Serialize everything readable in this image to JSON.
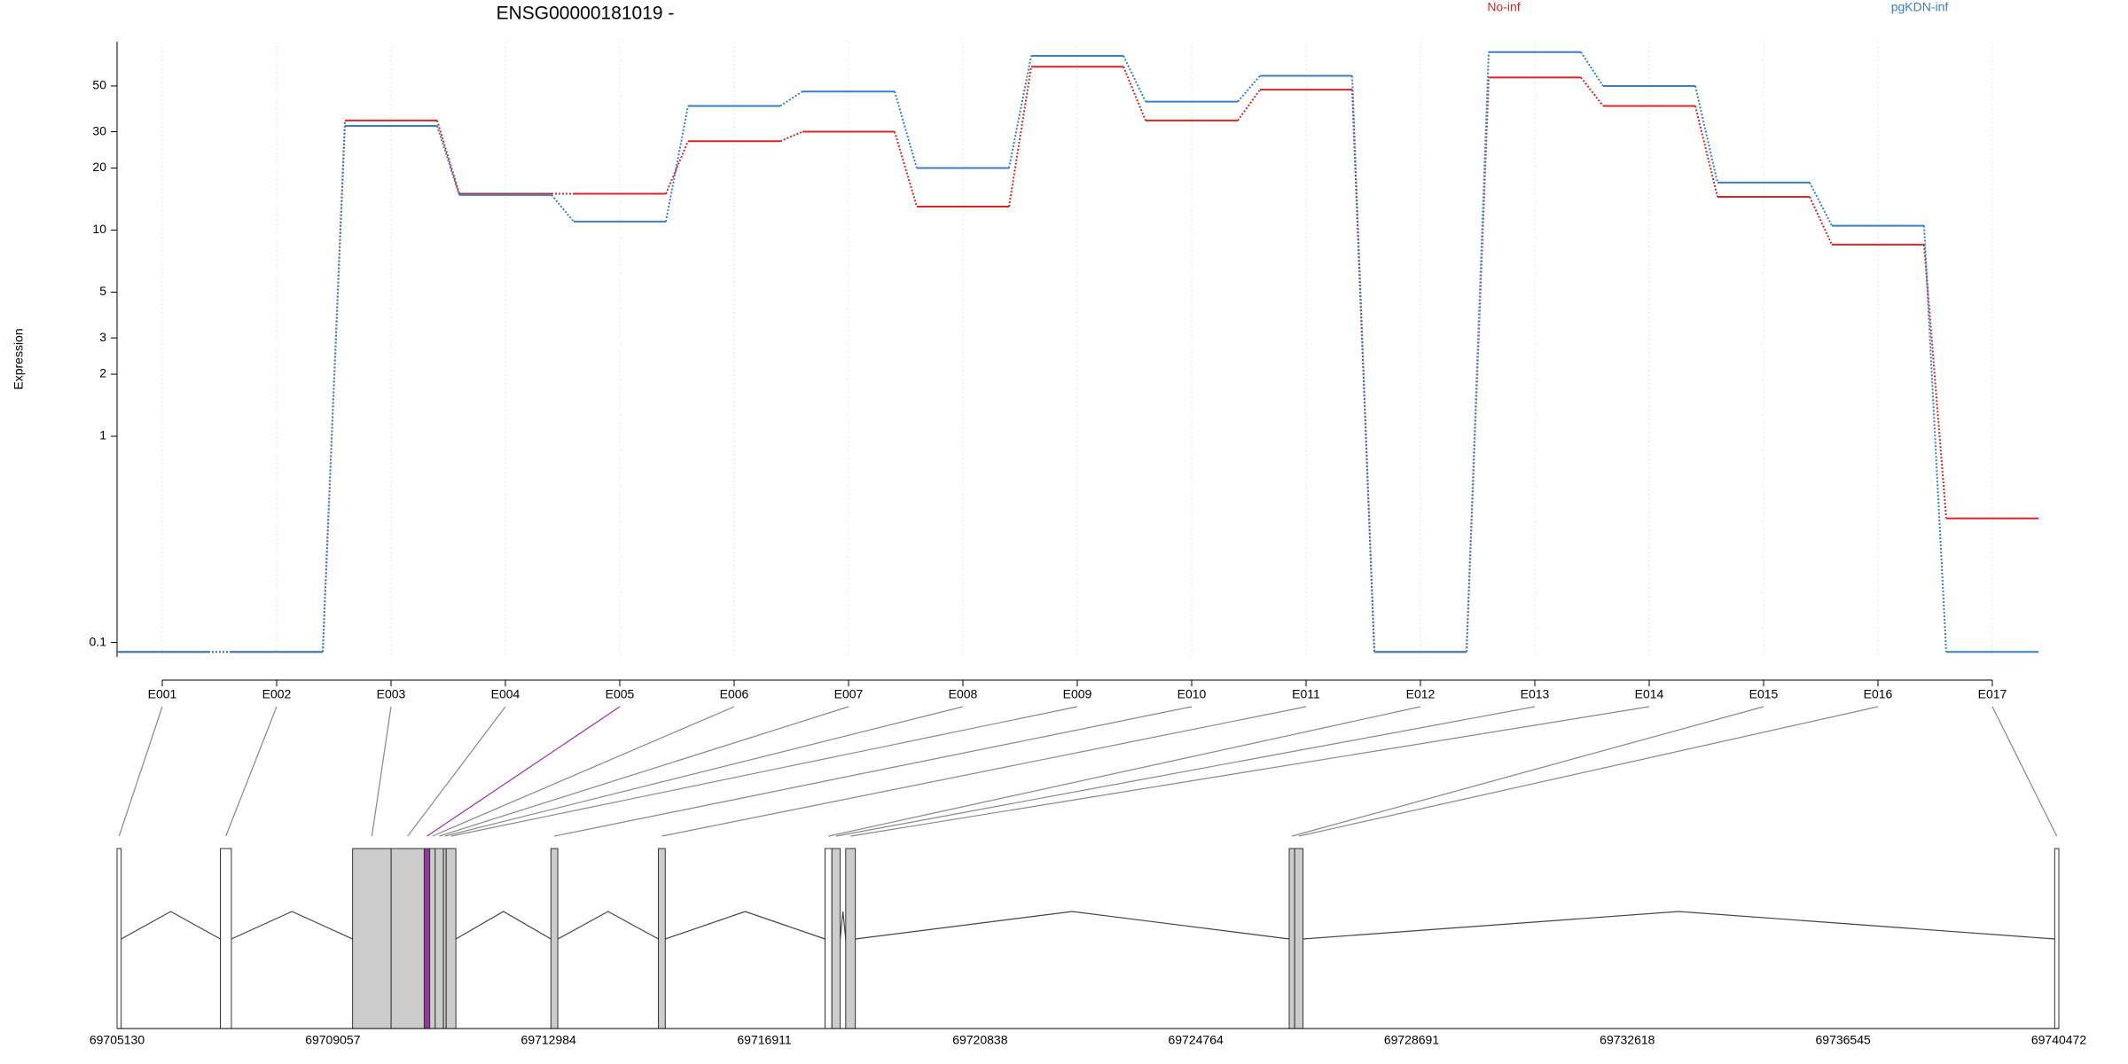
{
  "chart_data": {
    "type": "step",
    "title": "ENSG00000181019 -",
    "y_label": "Expression",
    "log_scale": true,
    "categories": [
      "E001",
      "E002",
      "E003",
      "E004",
      "E005",
      "E006",
      "E007",
      "E008",
      "E009",
      "E010",
      "E011",
      "E012",
      "E013",
      "E014",
      "E015",
      "E016",
      "E017"
    ],
    "series": [
      {
        "name": "No-inf",
        "color": "#d62728",
        "values": [
          0.09,
          0.09,
          34,
          15,
          15,
          27,
          30,
          13,
          62,
          34,
          48,
          0.09,
          55,
          40,
          14.5,
          8.5,
          0.4
        ]
      },
      {
        "name": "pgKDN-inf",
        "color": "#3a7fc1",
        "values": [
          0.09,
          0.09,
          32,
          14.8,
          11,
          40,
          47,
          20,
          70,
          42,
          56,
          0.09,
          73,
          50,
          17,
          10.5,
          0.09
        ]
      }
    ],
    "ylim": [
      0.085,
      82
    ],
    "yticks": [
      0.1,
      1,
      2,
      3,
      5,
      10,
      20,
      30,
      50
    ],
    "grid": true,
    "gene_model": {
      "xlim": [
        69705130,
        69740472
      ],
      "xticks": [
        69705130,
        69709057,
        69712984,
        69716911,
        69720838,
        69724764,
        69728691,
        69732618,
        69736545,
        69740472
      ],
      "exons": [
        [
          69705130,
          69705205
        ],
        [
          69707010,
          69707211
        ],
        [
          69709417,
          69710119
        ],
        [
          69710119,
          69710721
        ],
        [
          69710721,
          69710821
        ],
        [
          69710821,
          69710921
        ],
        [
          69710921,
          69711071
        ],
        [
          69711071,
          69711121
        ],
        [
          69711121,
          69711297
        ],
        [
          69713027,
          69713152
        ],
        [
          69714983,
          69715108
        ],
        [
          69718016,
          69718141
        ],
        [
          69718141,
          69718292
        ],
        [
          69718392,
          69718567
        ],
        [
          69726464,
          69726564
        ],
        [
          69726564,
          69726715
        ],
        [
          69740397,
          69740472
        ]
      ],
      "fills": [
        "#ffffff",
        "#ffffff",
        "#cccccc",
        "#cccccc",
        "#9b2fae",
        "#cccccc",
        "#cccccc",
        "#cccccc",
        "#cccccc",
        "#cccccc",
        "#cccccc",
        "#ffffff",
        "#cccccc",
        "#cccccc",
        "#cccccc",
        "#cccccc",
        "#ffffff"
      ]
    }
  }
}
